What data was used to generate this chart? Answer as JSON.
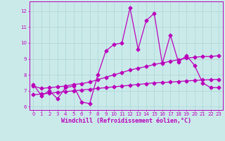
{
  "xlabel": "Windchill (Refroidissement éolien,°C)",
  "ylabel": "",
  "bg_color": "#caeaea",
  "grid_color": "#b0d8d8",
  "line_color": "#bb00bb",
  "xlim": [
    -0.5,
    23.5
  ],
  "ylim": [
    5.8,
    12.6
  ],
  "yticks": [
    6,
    7,
    8,
    9,
    10,
    11,
    12
  ],
  "xticks": [
    0,
    1,
    2,
    3,
    4,
    5,
    6,
    7,
    8,
    9,
    10,
    11,
    12,
    13,
    14,
    15,
    16,
    17,
    18,
    19,
    20,
    21,
    22,
    23
  ],
  "main_line": [
    7.4,
    6.7,
    7.0,
    6.5,
    7.2,
    7.3,
    6.3,
    6.2,
    8.0,
    9.5,
    9.9,
    10.0,
    12.2,
    9.6,
    11.4,
    11.85,
    8.7,
    10.5,
    8.8,
    9.2,
    8.6,
    7.5,
    7.2,
    7.2
  ],
  "trend_line1": [
    7.3,
    7.15,
    7.2,
    7.25,
    7.3,
    7.4,
    7.45,
    7.55,
    7.7,
    7.85,
    8.0,
    8.15,
    8.3,
    8.42,
    8.52,
    8.65,
    8.75,
    8.85,
    8.95,
    9.05,
    9.1,
    9.15,
    9.15,
    9.2
  ],
  "trend_line2": [
    6.75,
    6.8,
    6.85,
    6.9,
    6.95,
    7.0,
    7.05,
    7.1,
    7.15,
    7.2,
    7.25,
    7.3,
    7.35,
    7.4,
    7.45,
    7.5,
    7.52,
    7.55,
    7.58,
    7.62,
    7.65,
    7.68,
    7.7,
    7.72
  ],
  "marker_size": 2.5,
  "line_width": 0.9,
  "tick_fontsize": 5.0,
  "label_fontsize": 6.0
}
